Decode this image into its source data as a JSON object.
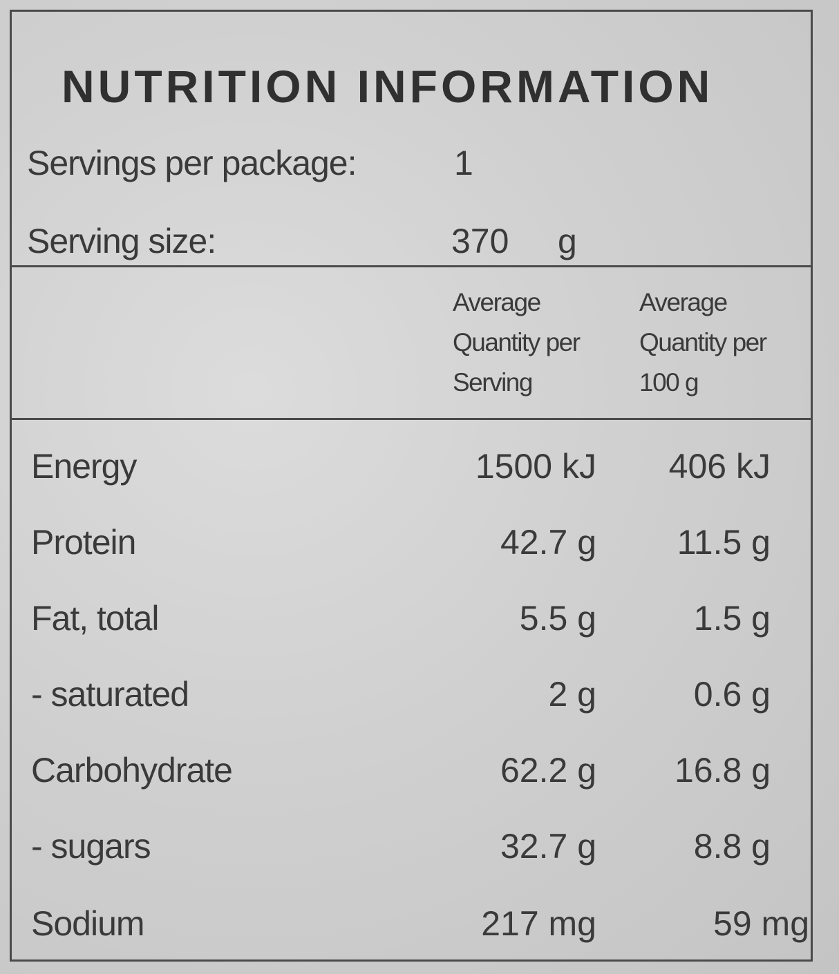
{
  "label": {
    "title": "NUTRITION INFORMATION",
    "servings_per_package_label": "Servings per package:",
    "servings_per_package_value": "1",
    "serving_size_label": "Serving size:",
    "serving_size_value": "370",
    "serving_size_unit": "g"
  },
  "columns": {
    "per_serving": "Average\nQuantity per\nServing",
    "per_100g": "Average\nQuantity per\n100 g"
  },
  "nutrients": [
    {
      "name": "Energy",
      "per_serving": "1500 kJ",
      "per_100g": "406 kJ"
    },
    {
      "name": "Protein",
      "per_serving": "42.7 g",
      "per_100g": "11.5 g"
    },
    {
      "name": "Fat, total",
      "per_serving": "5.5 g",
      "per_100g": "1.5 g"
    },
    {
      "name": "- saturated",
      "per_serving": "2 g",
      "per_100g": "0.6 g"
    },
    {
      "name": "Carbohydrate",
      "per_serving": "62.2 g",
      "per_100g": "16.8 g"
    },
    {
      "name": "- sugars",
      "per_serving": "32.7 g",
      "per_100g": "8.8 g"
    },
    {
      "name": "Sodium",
      "per_serving": "217 mg",
      "per_100g": "59 mg"
    }
  ]
}
